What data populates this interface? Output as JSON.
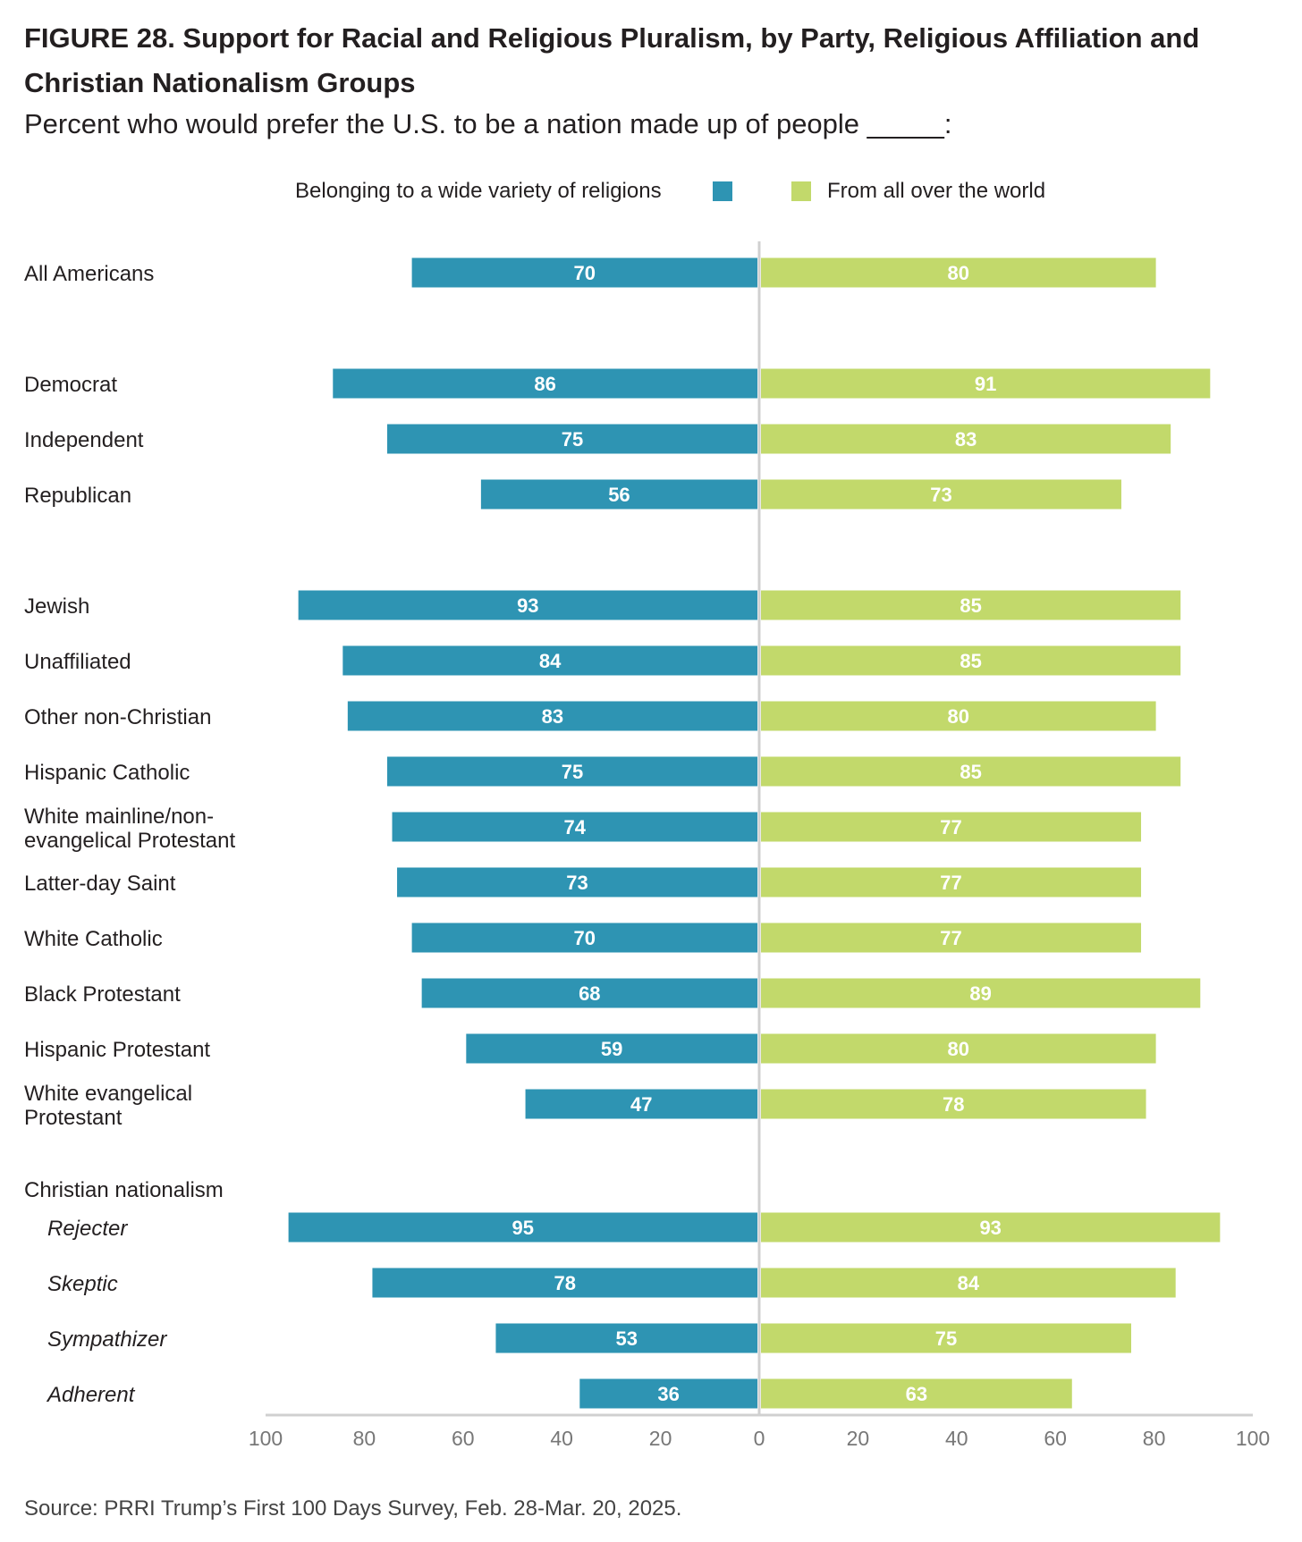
{
  "colors": {
    "left": "#2e94b3",
    "right": "#c2d96b",
    "axis": "#d0d0d0",
    "text": "#231f20"
  },
  "header": {
    "title": "FIGURE 28.  Support for Racial and Religious Pluralism, by Party, Religious Affiliation and Christian Nationalism Groups",
    "subtitle": "Percent who would prefer the U.S. to be a nation made up of people _____:"
  },
  "legend": {
    "left": "Belonging to a wide variety of religions",
    "right": "From all over the world"
  },
  "footer": {
    "source": "Source: PRRI Trump’s First 100 Days Survey, Feb. 28-Mar. 20, 2025."
  },
  "chart_data": {
    "type": "bar",
    "orientation": "horizontal-diverging",
    "title": "FIGURE 28.  Support for Racial and Religious Pluralism, by Party, Religious Affiliation and Christian Nationalism Groups",
    "subtitle": "Percent who would prefer the U.S. to be a nation made up of people _____:",
    "series": [
      {
        "name": "Belonging to a wide variety of religions",
        "side": "left"
      },
      {
        "name": "From all over the world",
        "side": "right"
      }
    ],
    "x_ticks": [
      "100",
      "80",
      "60",
      "40",
      "20",
      "0",
      "20",
      "40",
      "60",
      "80",
      "100"
    ],
    "xlim": [
      -100,
      100
    ],
    "group_header": "Christian nationalism",
    "rows": [
      {
        "label": [
          "All Americans"
        ],
        "left": 70,
        "right": 80
      },
      {
        "label": [
          "Democrat"
        ],
        "left": 86,
        "right": 91
      },
      {
        "label": [
          "Independent"
        ],
        "left": 75,
        "right": 83
      },
      {
        "label": [
          "Republican"
        ],
        "left": 56,
        "right": 73
      },
      {
        "label": [
          "Jewish"
        ],
        "left": 93,
        "right": 85
      },
      {
        "label": [
          "Unaffiliated"
        ],
        "left": 84,
        "right": 85
      },
      {
        "label": [
          "Other non-Christian"
        ],
        "left": 83,
        "right": 80
      },
      {
        "label": [
          "Hispanic Catholic"
        ],
        "left": 75,
        "right": 85
      },
      {
        "label": [
          "White mainline/non-",
          "evangelical Protestant"
        ],
        "left": 74,
        "right": 77
      },
      {
        "label": [
          "Latter-day Saint"
        ],
        "left": 73,
        "right": 77
      },
      {
        "label": [
          "White Catholic"
        ],
        "left": 70,
        "right": 77
      },
      {
        "label": [
          "Black Protestant"
        ],
        "left": 68,
        "right": 89
      },
      {
        "label": [
          "Hispanic Protestant"
        ],
        "left": 59,
        "right": 80
      },
      {
        "label": [
          "White evangelical",
          "Protestant"
        ],
        "left": 47,
        "right": 78
      },
      {
        "label": [
          "Rejecter"
        ],
        "left": 95,
        "right": 93,
        "italic": true
      },
      {
        "label": [
          "Skeptic"
        ],
        "left": 78,
        "right": 84,
        "italic": true
      },
      {
        "label": [
          "Sympathizer"
        ],
        "left": 53,
        "right": 75,
        "italic": true
      },
      {
        "label": [
          "Adherent"
        ],
        "left": 36,
        "right": 63,
        "italic": true
      }
    ]
  }
}
